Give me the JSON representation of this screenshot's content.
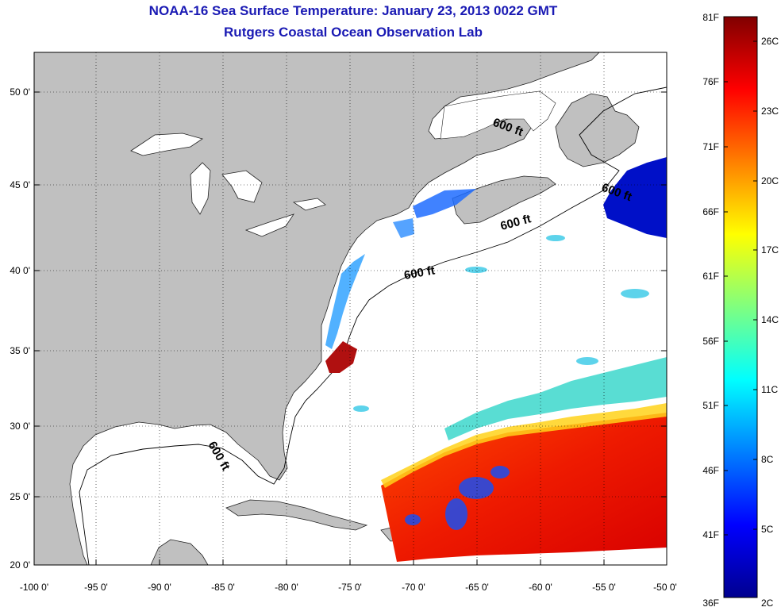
{
  "header": {
    "title": "NOAA-16 Sea Surface Temperature:  January 23, 2013 0022 GMT",
    "subtitle": "Rutgers Coastal Ocean Observation Lab"
  },
  "map": {
    "lon_range": [
      -100,
      -50
    ],
    "lat_range": [
      20,
      52.5
    ],
    "lon_ticks": [
      "-100 0'",
      "-95 0'",
      "-90 0'",
      "-85 0'",
      "-80 0'",
      "-75 0'",
      "-70 0'",
      "-65 0'",
      "-60 0'",
      "-55 0'",
      "-50 0'"
    ],
    "lat_ticks": [
      "20 0'",
      "25 0'",
      "30 0'",
      "35 0'",
      "40 0'",
      "45 0'",
      "50 0'"
    ],
    "lat_values": [
      20,
      25,
      30,
      35,
      40,
      45,
      50
    ],
    "lon_values": [
      -100,
      -95,
      -90,
      -85,
      -80,
      -75,
      -70,
      -65,
      -60,
      -55,
      -50
    ],
    "contour_labels": [
      "600 ft",
      "600 ft",
      "600 ft",
      "600 ft",
      "600 ft"
    ],
    "land_color": "#c0c0c0",
    "ocean_color": "#ffffff"
  },
  "colorbar": {
    "f_labels": [
      "81F",
      "76F",
      "71F",
      "66F",
      "61F",
      "56F",
      "51F",
      "46F",
      "41F",
      "36F"
    ],
    "c_labels": [
      "26C",
      "23C",
      "20C",
      "17C",
      "14C",
      "11C",
      "8C",
      "5C",
      "2C"
    ],
    "colormap": "jet",
    "range_f": [
      36,
      81
    ]
  }
}
